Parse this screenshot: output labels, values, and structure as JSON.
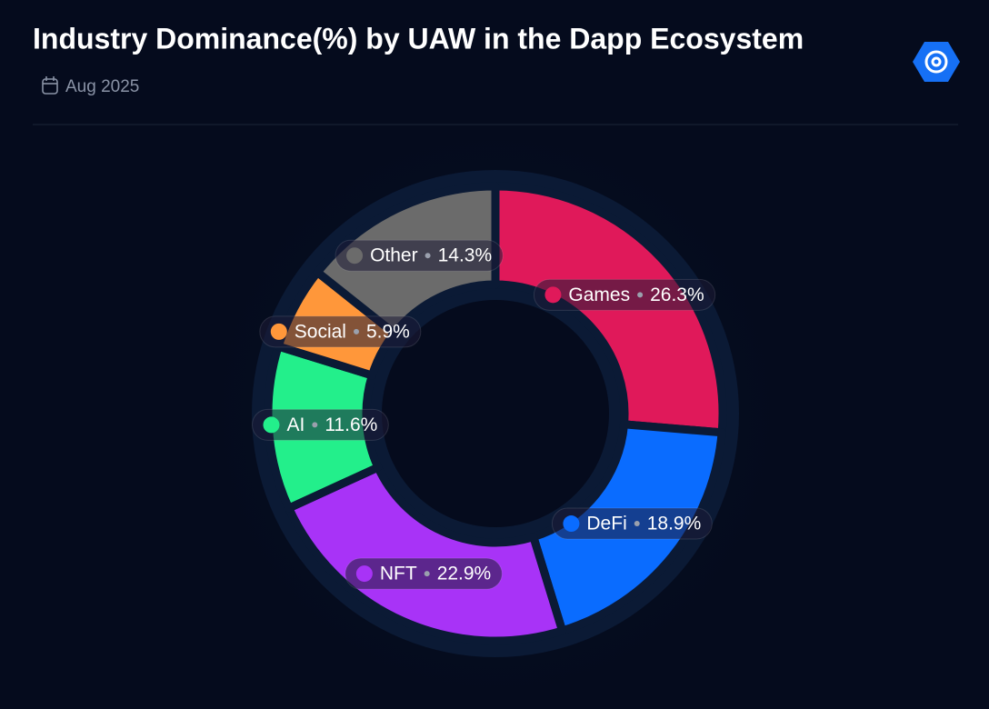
{
  "chart_data": {
    "type": "donut",
    "title": "Industry Dominance(%) by UAW in the Dapp Ecosystem",
    "subtitle": "Aug 2025",
    "categories": [
      "Games",
      "DeFi",
      "NFT",
      "AI",
      "Social",
      "Other"
    ],
    "values": [
      26.3,
      18.9,
      22.9,
      11.6,
      5.9,
      14.3
    ],
    "value_labels": [
      "26.3%",
      "18.9%",
      "22.9%",
      "11.6%",
      "5.9%",
      "14.3%"
    ],
    "colors": [
      "#e0195a",
      "#0a6cff",
      "#a833f7",
      "#23ef8b",
      "#ff973a",
      "#6b6b6b"
    ]
  }
}
